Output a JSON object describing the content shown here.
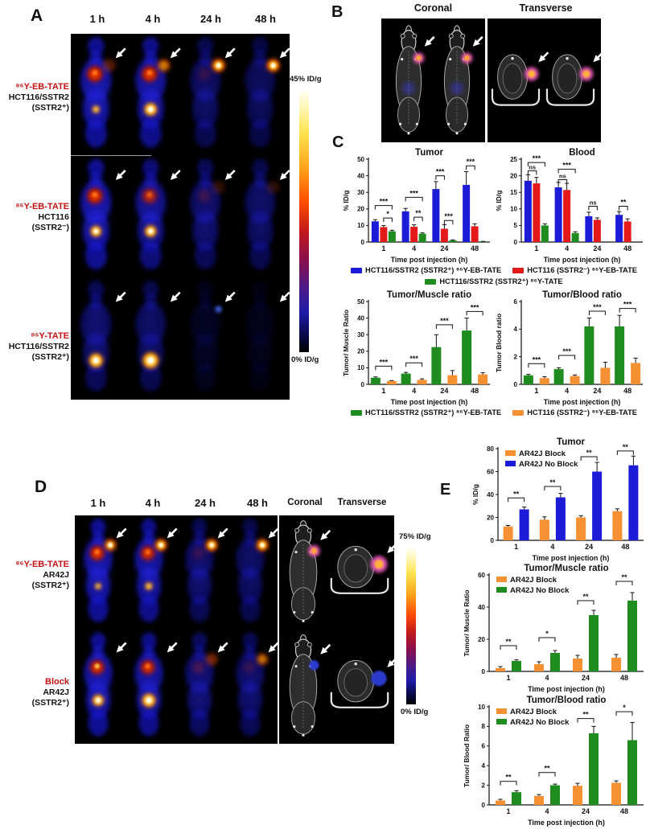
{
  "panels": {
    "A": {
      "label": "A",
      "timepoints": [
        "1 h",
        "4 h",
        "24 h",
        "48 h"
      ],
      "rows": [
        {
          "tracer": "⁸⁶Y-EB-TATE",
          "cell": "HCT116/SSTR2",
          "status": "(SSTR2⁺)"
        },
        {
          "tracer": "⁸⁶Y-EB-TATE",
          "cell": "HCT116",
          "status": "(SSTR2⁻)"
        },
        {
          "tracer": "⁸⁶Y-TATE",
          "cell": "HCT116/SSTR2",
          "status": "(SSTR2⁺)"
        }
      ],
      "colorbar_top": "45% ID/g",
      "colorbar_bottom": "0% ID/g"
    },
    "B": {
      "label": "B",
      "view1": "Coronal",
      "view2": "Transverse"
    },
    "C": {
      "label": "C",
      "legend_top": [
        {
          "color": "#1c1cd8",
          "text": "HCT116/SSTR2 (SSTR2⁺) ⁸⁶Y-EB-TATE"
        },
        {
          "color": "#e41a1a",
          "text": "HCT116 (SSTR2⁻) ⁸⁶Y-EB-TATE"
        },
        {
          "color": "#1f8c1f",
          "text": "HCT116/SSTR2 (SSTR2⁺) ⁸⁶Y-TATE"
        }
      ],
      "legend_bottom": [
        {
          "color": "#1f8c1f",
          "text": "HCT116/SSTR2 (SSTR2⁺) ⁸⁶Y-EB-TATE"
        },
        {
          "color": "#f59133",
          "text": "HCT116 (SSTR2⁻) ⁸⁶Y-EB-TATE"
        }
      ]
    },
    "D": {
      "label": "D",
      "timepoints": [
        "1 h",
        "4 h",
        "24 h",
        "48 h"
      ],
      "view1": "Coronal",
      "view2": "Transverse",
      "rows": [
        {
          "tracer": "⁸⁶Y-EB-TATE",
          "cell": "AR42J",
          "status": "(SSTR2⁺)"
        },
        {
          "tracer": "Block",
          "cell": "AR42J",
          "status": "(SSTR2⁺)"
        }
      ],
      "colorbar_top": "75% ID/g",
      "colorbar_bottom": "0% ID/g"
    },
    "E": {
      "label": "E"
    }
  },
  "chart_data": [
    {
      "type": "bar",
      "title": "Tumor",
      "ylabel": "% ID/g",
      "xlabel": "Time post injection (h)",
      "ylim": [
        0,
        50
      ],
      "ytick": 10,
      "categories": [
        "1",
        "4",
        "24",
        "48"
      ],
      "legend": "none",
      "series": [
        {
          "name": "HCT116/SSTR2 (SSTR2⁺) ⁸⁶Y-EB-TATE",
          "color": "#1c1cd8",
          "values": [
            12.5,
            18.5,
            32,
            34.5
          ],
          "errors": [
            1,
            1.8,
            4.5,
            8
          ]
        },
        {
          "name": "HCT116 (SSTR2⁻) ⁸⁶Y-EB-TATE",
          "color": "#e41a1a",
          "values": [
            9,
            9.2,
            8,
            9.5
          ],
          "errors": [
            1,
            1.2,
            2.5,
            1.5
          ]
        },
        {
          "name": "HCT116/SSTR2 (SSTR2⁺) ⁸⁶Y-TATE",
          "color": "#1f8c1f",
          "values": [
            6.5,
            5,
            1,
            0.3
          ],
          "errors": [
            0.6,
            0.5,
            0.3,
            0.1
          ]
        }
      ],
      "sig": [
        {
          "cat": 0,
          "s1": 0,
          "s2": 2,
          "y": 22,
          "label": "***"
        },
        {
          "cat": 0,
          "s1": 1,
          "s2": 2,
          "y": 14.5,
          "label": "*"
        },
        {
          "cat": 1,
          "s1": 0,
          "s2": 2,
          "y": 27,
          "label": "***"
        },
        {
          "cat": 1,
          "s1": 1,
          "s2": 2,
          "y": 15,
          "label": "**"
        },
        {
          "cat": 2,
          "s1": 0,
          "s2": 1,
          "y": 40,
          "label": "***"
        },
        {
          "cat": 2,
          "s1": 1,
          "s2": 2,
          "y": 13,
          "label": "***"
        },
        {
          "cat": 3,
          "s1": 0,
          "s2": 1,
          "y": 46,
          "label": "***"
        }
      ]
    },
    {
      "type": "bar",
      "title": "Blood",
      "ylabel": "% ID/g",
      "xlabel": "Time post injection (h)",
      "ylim": [
        0,
        25
      ],
      "ytick": 5,
      "categories": [
        "1",
        "4",
        "24",
        "48"
      ],
      "legend": "none",
      "series": [
        {
          "name": "HCT116/SSTR2 (SSTR2⁺) ⁸⁶Y-EB-TATE",
          "color": "#1c1cd8",
          "values": [
            18.5,
            16.5,
            7.8,
            8.2
          ],
          "errors": [
            1.8,
            1.5,
            1.2,
            1
          ]
        },
        {
          "name": "HCT116 (SSTR2⁻) ⁸⁶Y-EB-TATE",
          "color": "#e41a1a",
          "values": [
            17.7,
            15.7,
            6.7,
            6.2
          ],
          "errors": [
            1.8,
            2,
            0.6,
            0.8
          ]
        },
        {
          "name": "HCT116/SSTR2 (SSTR2⁺) ⁸⁶Y-TATE",
          "color": "#1f8c1f",
          "values": [
            5,
            2.7,
            0,
            0
          ],
          "errors": [
            0.5,
            0.4,
            0,
            0
          ]
        }
      ],
      "sig": [
        {
          "cat": 0,
          "s1": 0,
          "s2": 1,
          "y": 21.5,
          "label": "ns"
        },
        {
          "cat": 0,
          "s1": 0,
          "s2": 2,
          "y": 24,
          "label": "***"
        },
        {
          "cat": 1,
          "s1": 0,
          "s2": 1,
          "y": 18.8,
          "label": "ns"
        },
        {
          "cat": 1,
          "s1": 0,
          "s2": 2,
          "y": 22,
          "label": "***"
        },
        {
          "cat": 2,
          "s1": 0,
          "s2": 1,
          "y": 10.8,
          "label": "ns"
        },
        {
          "cat": 3,
          "s1": 0,
          "s2": 1,
          "y": 10.8,
          "label": "**"
        }
      ]
    },
    {
      "type": "bar",
      "title": "Tumor/Muscle ratio",
      "ylabel": "Tumor/ Muscle Ratio",
      "xlabel": "Time post injection (h)",
      "ylim": [
        0,
        50
      ],
      "ytick": 10,
      "categories": [
        "1",
        "4",
        "24",
        "48"
      ],
      "legend": "none",
      "series": [
        {
          "name": "HCT116/SSTR2 (SSTR2⁺) ⁸⁶Y-EB-TATE",
          "color": "#1f8c1f",
          "values": [
            4,
            6.5,
            22.5,
            32.5
          ],
          "errors": [
            0.5,
            0.7,
            7.5,
            7.5
          ]
        },
        {
          "name": "HCT116 (SSTR2⁻) ⁸⁶Y-EB-TATE",
          "color": "#f59133",
          "values": [
            2,
            2.7,
            5.5,
            6
          ],
          "errors": [
            0.3,
            0.6,
            2.8,
            1
          ]
        }
      ],
      "sig": [
        {
          "cat": 0,
          "s1": 0,
          "s2": 1,
          "y": 11,
          "label": "***"
        },
        {
          "cat": 1,
          "s1": 0,
          "s2": 1,
          "y": 13,
          "label": "***"
        },
        {
          "cat": 2,
          "s1": 0,
          "s2": 1,
          "y": 36,
          "label": "***"
        },
        {
          "cat": 3,
          "s1": 0,
          "s2": 1,
          "y": 44,
          "label": "***"
        }
      ]
    },
    {
      "type": "bar",
      "title": "Tumor/Blood ratio",
      "ylabel": "Tumor Blood ratio",
      "xlabel": "Time post injection (h)",
      "ylim": [
        0,
        6
      ],
      "ytick": 2,
      "categories": [
        "1",
        "4",
        "24",
        "48"
      ],
      "legend": "none",
      "series": [
        {
          "name": "HCT116/SSTR2 (SSTR2⁺) ⁸⁶Y-EB-TATE",
          "color": "#1f8c1f",
          "values": [
            0.65,
            1.1,
            4.2,
            4.2
          ],
          "errors": [
            0.07,
            0.1,
            0.6,
            0.8
          ]
        },
        {
          "name": "HCT116 (SSTR2⁻) ⁸⁶Y-EB-TATE",
          "color": "#f59133",
          "values": [
            0.45,
            0.6,
            1.2,
            1.55
          ],
          "errors": [
            0.1,
            0.08,
            0.4,
            0.35
          ]
        }
      ],
      "sig": [
        {
          "cat": 0,
          "s1": 0,
          "s2": 1,
          "y": 1.5,
          "label": "***"
        },
        {
          "cat": 1,
          "s1": 0,
          "s2": 1,
          "y": 2.1,
          "label": "***"
        },
        {
          "cat": 2,
          "s1": 0,
          "s2": 1,
          "y": 5.3,
          "label": "***"
        },
        {
          "cat": 3,
          "s1": 0,
          "s2": 1,
          "y": 5.5,
          "label": "***"
        }
      ]
    },
    {
      "type": "bar",
      "title": "Tumor",
      "ylabel": "% ID/g",
      "xlabel": "Time post injection (h)",
      "ylim": [
        0,
        80
      ],
      "ytick": 20,
      "categories": [
        "1",
        "4",
        "24",
        "48"
      ],
      "legend": "inline",
      "series": [
        {
          "name": "AR42J Block",
          "color": "#f59133",
          "values": [
            12,
            18,
            20,
            25.5
          ],
          "errors": [
            1,
            2.5,
            1.5,
            2
          ]
        },
        {
          "name": "AR42J No Block",
          "color": "#1c1cd8",
          "values": [
            27,
            37.5,
            60,
            65.5
          ],
          "errors": [
            2,
            3.5,
            8,
            8
          ]
        }
      ],
      "sig": [
        {
          "cat": 0,
          "s1": 0,
          "s2": 1,
          "y": 37,
          "label": "**"
        },
        {
          "cat": 1,
          "s1": 0,
          "s2": 1,
          "y": 47,
          "label": "**"
        },
        {
          "cat": 2,
          "s1": 0,
          "s2": 1,
          "y": 73,
          "label": "**"
        },
        {
          "cat": 3,
          "s1": 0,
          "s2": 1,
          "y": 78,
          "label": "**"
        }
      ]
    },
    {
      "type": "bar",
      "title": "Tumor/Muscle ratio",
      "ylabel": "Tumor/ Muscle Ratio",
      "xlabel": "Time post injection (h)",
      "ylim": [
        0,
        60
      ],
      "ytick": 20,
      "categories": [
        "1",
        "4",
        "24",
        "48"
      ],
      "legend": "inline",
      "series": [
        {
          "name": "AR42J Block",
          "color": "#f59133",
          "values": [
            2,
            4.5,
            8,
            8.5
          ],
          "errors": [
            1,
            1.5,
            2,
            2
          ]
        },
        {
          "name": "AR42J No Block",
          "color": "#1f8c1f",
          "values": [
            6.5,
            11.5,
            35,
            44
          ],
          "errors": [
            0.7,
            1.5,
            3,
            5
          ]
        }
      ],
      "sig": [
        {
          "cat": 0,
          "s1": 0,
          "s2": 1,
          "y": 16,
          "label": "**"
        },
        {
          "cat": 1,
          "s1": 0,
          "s2": 1,
          "y": 21,
          "label": "*"
        },
        {
          "cat": 2,
          "s1": 0,
          "s2": 1,
          "y": 44,
          "label": "**"
        },
        {
          "cat": 3,
          "s1": 0,
          "s2": 1,
          "y": 56,
          "label": "**"
        }
      ]
    },
    {
      "type": "bar",
      "title": "Tumor/Blood ratio",
      "ylabel": "Tumor/ Blood Ratio",
      "xlabel": "Time post injection (h)",
      "ylim": [
        0,
        10
      ],
      "ytick": 2,
      "categories": [
        "1",
        "4",
        "24",
        "48"
      ],
      "legend": "inline",
      "series": [
        {
          "name": "AR42J Block",
          "color": "#f59133",
          "values": [
            0.45,
            0.9,
            1.95,
            2.25
          ],
          "errors": [
            0.12,
            0.15,
            0.25,
            0.2
          ]
        },
        {
          "name": "AR42J No Block",
          "color": "#1f8c1f",
          "values": [
            1.3,
            2.0,
            7.3,
            6.6
          ],
          "errors": [
            0.15,
            0.12,
            0.7,
            1.8
          ]
        }
      ],
      "sig": [
        {
          "cat": 0,
          "s1": 0,
          "s2": 1,
          "y": 2.4,
          "label": "**"
        },
        {
          "cat": 1,
          "s1": 0,
          "s2": 1,
          "y": 3.3,
          "label": "**"
        },
        {
          "cat": 2,
          "s1": 0,
          "s2": 1,
          "y": 8.8,
          "label": "**"
        },
        {
          "cat": 3,
          "s1": 0,
          "s2": 1,
          "y": 9.5,
          "label": "*"
        }
      ]
    }
  ]
}
